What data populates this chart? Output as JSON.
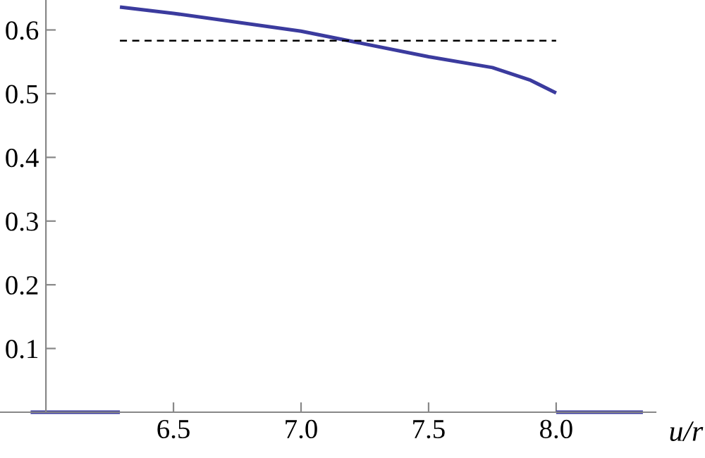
{
  "chart_data": {
    "type": "line",
    "xlabel": "u/r",
    "xlim": [
      5.82,
      8.39
    ],
    "ylim": [
      0,
      0.647
    ],
    "xticks": [
      6.5,
      {
        "value": 7.0,
        "label": "7.0"
      },
      7.5,
      {
        "value": 8.0,
        "label": "8.0"
      }
    ],
    "yticks": [
      0.1,
      0.2,
      0.3,
      0.4,
      0.5,
      0.6
    ],
    "grid": false,
    "legend": false,
    "series": [
      {
        "color": "#3b3b9e",
        "line_style": "solid",
        "x": [
          5.94,
          6.29,
          null,
          6.29,
          6.5,
          7.0,
          7.5,
          7.75,
          7.9,
          8.0,
          null,
          8.0,
          8.34
        ],
        "values": [
          0,
          0,
          null,
          0.636,
          0.626,
          0.598,
          0.558,
          0.541,
          0.521,
          0.501,
          null,
          0,
          0
        ]
      },
      {
        "color": "#000000",
        "line_style": "dashed",
        "x": [
          6.29,
          8.0
        ],
        "values": [
          0.583,
          0.583
        ]
      }
    ]
  }
}
